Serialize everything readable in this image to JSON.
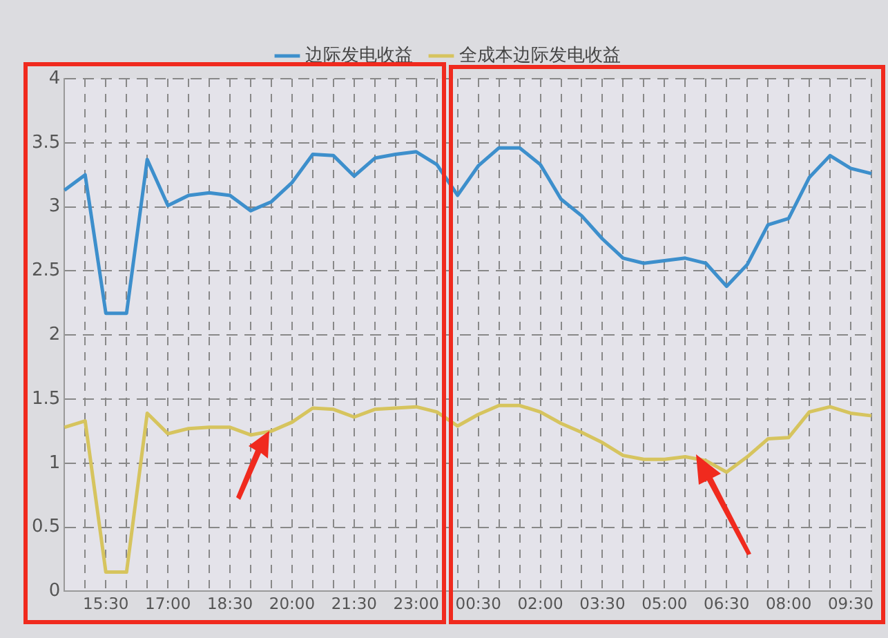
{
  "chart_data": {
    "type": "line",
    "categories": [
      null,
      null,
      "15:30",
      null,
      null,
      "17:00",
      null,
      null,
      "18:30",
      null,
      null,
      "20:00",
      null,
      null,
      "21:30",
      null,
      null,
      "23:00",
      null,
      null,
      "00:30",
      null,
      null,
      "02:00",
      null,
      null,
      "03:30",
      null,
      null,
      "05:00",
      null,
      null,
      "06:30",
      null,
      null,
      "08:00",
      null,
      null,
      "09:30",
      null
    ],
    "series": [
      {
        "name": "边际发电收益",
        "color": "#3d8fcc",
        "values": [
          3.13,
          3.25,
          2.17,
          2.17,
          3.37,
          3.01,
          3.09,
          3.11,
          3.09,
          2.97,
          3.04,
          3.19,
          3.41,
          3.4,
          3.24,
          3.38,
          3.41,
          3.43,
          3.33,
          3.09,
          3.32,
          3.46,
          3.46,
          3.33,
          3.06,
          2.93,
          2.75,
          2.6,
          2.56,
          2.58,
          2.6,
          2.56,
          2.38,
          2.55,
          2.86,
          2.91,
          3.23,
          3.4,
          3.3,
          3.26
        ]
      },
      {
        "name": "全成本边际发电收益",
        "color": "#d6c45e",
        "values": [
          1.28,
          1.33,
          0.15,
          0.15,
          1.39,
          1.23,
          1.27,
          1.28,
          1.28,
          1.22,
          1.25,
          1.32,
          1.43,
          1.42,
          1.36,
          1.42,
          1.43,
          1.44,
          1.4,
          1.29,
          1.38,
          1.45,
          1.45,
          1.4,
          1.31,
          1.24,
          1.16,
          1.06,
          1.03,
          1.03,
          1.05,
          1.02,
          0.93,
          1.05,
          1.19,
          1.2,
          1.4,
          1.44,
          1.39,
          1.37
        ]
      }
    ],
    "ylim": [
      0,
      4
    ],
    "yticks": [
      0,
      0.5,
      1,
      1.5,
      2,
      2.5,
      3,
      3.5,
      4
    ],
    "grid": true,
    "legend": "top",
    "marker": "none",
    "line_style": "solid"
  }
}
